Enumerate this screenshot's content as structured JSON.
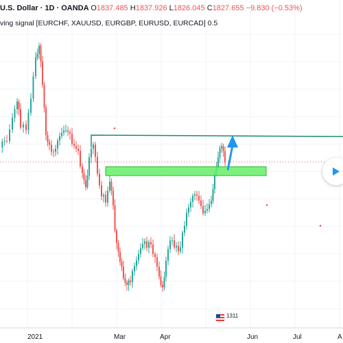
{
  "legend": {
    "symbol": "U.S. Dollar · 1D · OANDA",
    "open_label": "O",
    "open": "1837.485",
    "high_label": "H",
    "high": "1837.926",
    "low_label": "L",
    "low": "1826.045",
    "close_label": "C",
    "close": "1827.655",
    "change": "−9.830 (−0.53%)",
    "indicator": "ving signal [EURCHF, XAUUSD, EURGBP, EURUSD, EURCAD] 0.5"
  },
  "time_axis": {
    "labels": [
      "2021",
      "Mar",
      "Apr",
      "Jun",
      "Jul",
      "A"
    ]
  },
  "event_badge": {
    "label": "1311",
    "icon": "us-flag-icon"
  },
  "colors": {
    "up": "#26a69a",
    "down": "#ef5350",
    "zone": "#66ee66",
    "resistance": "#1a8a6e",
    "arrow": "#2196f3",
    "last_price": "#ef5350"
  },
  "chart_data": {
    "type": "candlestick",
    "title": "",
    "xlabel": "",
    "ylabel": "",
    "x_tick_labels": [
      "2021",
      "Mar",
      "Apr",
      "Jun",
      "Jul",
      "A"
    ],
    "last_close": 1827.655,
    "annotations": [
      {
        "type": "horizontal_line",
        "label": ""
      },
      {
        "type": "rectangle_zone",
        "label": ""
      },
      {
        "type": "arrow_up",
        "label": ""
      }
    ]
  }
}
